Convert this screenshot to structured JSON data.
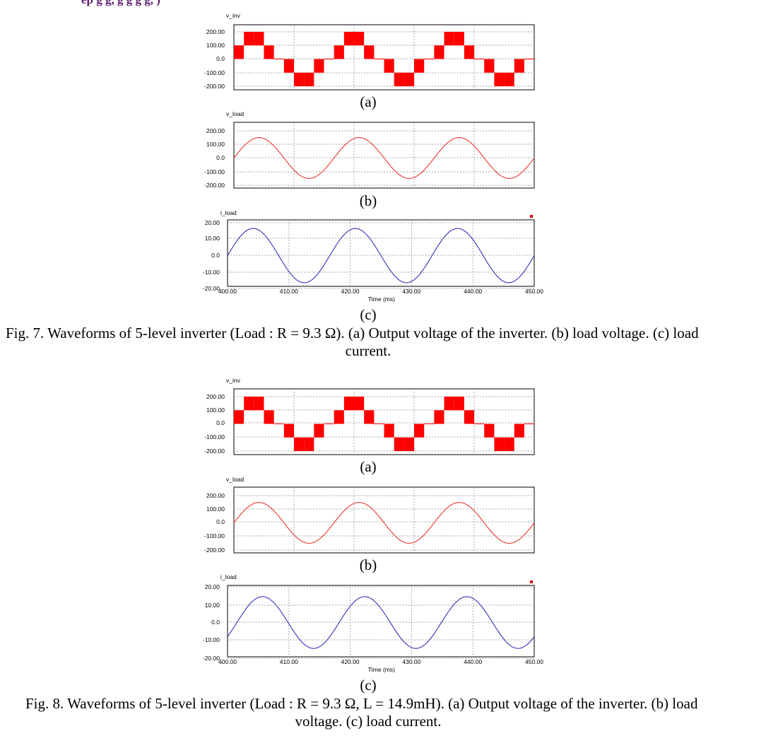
{
  "header_fragment": "ep                               g        g,    g        g        g        g,                   )",
  "figures": [
    {
      "caption_line1": "Fig. 7.  Waveforms of 5-level inverter (Load : R = 9.3 Ω). (a) Output voltage of the inverter. (b) load voltage. (c) load",
      "caption_line2": "current.",
      "panels": [
        {
          "label": "v_inv",
          "sub": "(a)",
          "yticks": [
            "200.00",
            "100.00",
            "0.0",
            "-100.00",
            "-200.00"
          ]
        },
        {
          "label": "v_load",
          "sub": "(b)",
          "yticks": [
            "200.00",
            "100.00",
            "0.0",
            "-100.00",
            "-200.00"
          ]
        },
        {
          "label": "i_load",
          "sub": "(c)",
          "yticks": [
            "20.00",
            "10.00",
            "0.0",
            "-10.00",
            "-20.00"
          ]
        }
      ],
      "xticks": [
        "400.00",
        "410.00",
        "420.00",
        "430.00",
        "440.00",
        "450.00"
      ],
      "xlabel": "Time (ms)"
    },
    {
      "caption_line1": "Fig. 8.  Waveforms of 5-level inverter (Load : R = 9.3 Ω, L = 14.9mH). (a) Output voltage of the inverter. (b) load",
      "caption_line2": "voltage. (c) load current.",
      "panels": [
        {
          "label": "v_inv",
          "sub": "(a)",
          "yticks": [
            "200.00",
            "100.00",
            "0.0",
            "-100.00",
            "-200.00"
          ]
        },
        {
          "label": "v_load",
          "sub": "(b)",
          "yticks": [
            "200.00",
            "100.00",
            "0.0",
            "-100.00",
            "-200.00"
          ]
        },
        {
          "label": "i_load",
          "sub": "(c)",
          "yticks": [
            "20.00",
            "10.00",
            "0.0",
            "-10.00",
            "-20.00"
          ]
        }
      ],
      "xticks": [
        "400.00",
        "410.00",
        "420.00",
        "430.00",
        "440.00",
        "450.00"
      ],
      "xlabel": "Time (ms)"
    }
  ],
  "colors": {
    "v_inv": "#ff0000",
    "v_load": "#e8241f",
    "i_load": "#1f1fb4"
  },
  "chart_data": [
    {
      "type": "line",
      "figure": "Fig. 7 (a)",
      "series": [
        {
          "name": "v_inv",
          "amplitude_levels": [
            -200,
            -100,
            0,
            100,
            200
          ],
          "fundamental_period_ms": 16.67,
          "start_phase_deg": 0
        }
      ],
      "xlim": [
        400,
        450
      ],
      "ylim": [
        -200,
        200
      ],
      "xlabel": "Time (ms)"
    },
    {
      "type": "line",
      "figure": "Fig. 7 (b)",
      "series": [
        {
          "name": "v_load",
          "amplitude": 150,
          "period_ms": 16.67,
          "start_phase_deg": 0
        }
      ],
      "xlim": [
        400,
        450
      ],
      "ylim": [
        -200,
        200
      ],
      "xlabel": "Time (ms)"
    },
    {
      "type": "line",
      "figure": "Fig. 7 (c)",
      "series": [
        {
          "name": "i_load",
          "amplitude": 16.5,
          "period_ms": 16.67,
          "start_phase_deg": 0
        }
      ],
      "xlim": [
        400,
        450
      ],
      "ylim": [
        -20,
        20
      ],
      "xlabel": "Time (ms)"
    },
    {
      "type": "line",
      "figure": "Fig. 8 (a)",
      "series": [
        {
          "name": "v_inv",
          "amplitude_levels": [
            -200,
            -100,
            0,
            100,
            200
          ],
          "fundamental_period_ms": 16.67,
          "start_phase_deg": 0
        }
      ],
      "xlim": [
        400,
        450
      ],
      "ylim": [
        -200,
        200
      ],
      "xlabel": "Time (ms)"
    },
    {
      "type": "line",
      "figure": "Fig. 8 (b)",
      "series": [
        {
          "name": "v_load",
          "amplitude": 150,
          "period_ms": 16.67,
          "start_phase_deg": 0
        }
      ],
      "xlim": [
        400,
        450
      ],
      "ylim": [
        -200,
        200
      ],
      "xlabel": "Time (ms)"
    },
    {
      "type": "line",
      "figure": "Fig. 8 (c)",
      "series": [
        {
          "name": "i_load",
          "amplitude": 14.5,
          "period_ms": 16.67,
          "start_phase_deg": -33
        }
      ],
      "xlim": [
        400,
        450
      ],
      "ylim": [
        -20,
        20
      ],
      "xlabel": "Time (ms)"
    }
  ]
}
